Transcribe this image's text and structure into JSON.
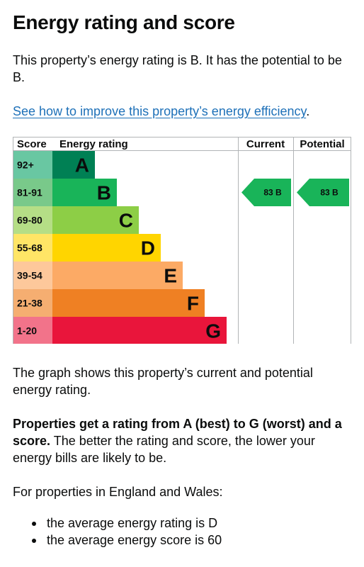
{
  "heading": "Energy rating and score",
  "intro": "This property’s energy rating is B. It has the potential to be B.",
  "improve_link": "See how to improve this property’s energy efficiency",
  "improve_link_suffix": ".",
  "chart_data": {
    "type": "table",
    "headers": {
      "score": "Score",
      "rating": "Energy rating",
      "current": "Current",
      "potential": "Potential"
    },
    "bands": [
      {
        "range": "92+",
        "letter": "A",
        "color": "#008054",
        "score_bg": "#69c7a2"
      },
      {
        "range": "81-91",
        "letter": "B",
        "color": "#19b459",
        "score_bg": "#79c98a"
      },
      {
        "range": "69-80",
        "letter": "C",
        "color": "#8dce46",
        "score_bg": "#b5de86"
      },
      {
        "range": "55-68",
        "letter": "D",
        "color": "#ffd500",
        "score_bg": "#ffe566"
      },
      {
        "range": "39-54",
        "letter": "E",
        "color": "#fcaa65",
        "score_bg": "#fdc89b"
      },
      {
        "range": "21-38",
        "letter": "F",
        "color": "#ef8023",
        "score_bg": "#f5ae71"
      },
      {
        "range": "1-20",
        "letter": "G",
        "color": "#e9153b",
        "score_bg": "#f2738a"
      }
    ],
    "current": {
      "score": 83,
      "letter": "B",
      "label": "83 B",
      "color": "#19b459"
    },
    "potential": {
      "score": 83,
      "letter": "B",
      "label": "83 B",
      "color": "#19b459"
    }
  },
  "graph_note": "The graph shows this property’s current and potential energy rating.",
  "rating_bold": "Properties get a rating from A (best) to G (worst) and a score.",
  "rating_rest": " The better the rating and score, the lower your energy bills are likely to be.",
  "average_intro": "For properties in England and Wales:",
  "averages": [
    "the average energy rating is D",
    "the average energy score is 60"
  ]
}
